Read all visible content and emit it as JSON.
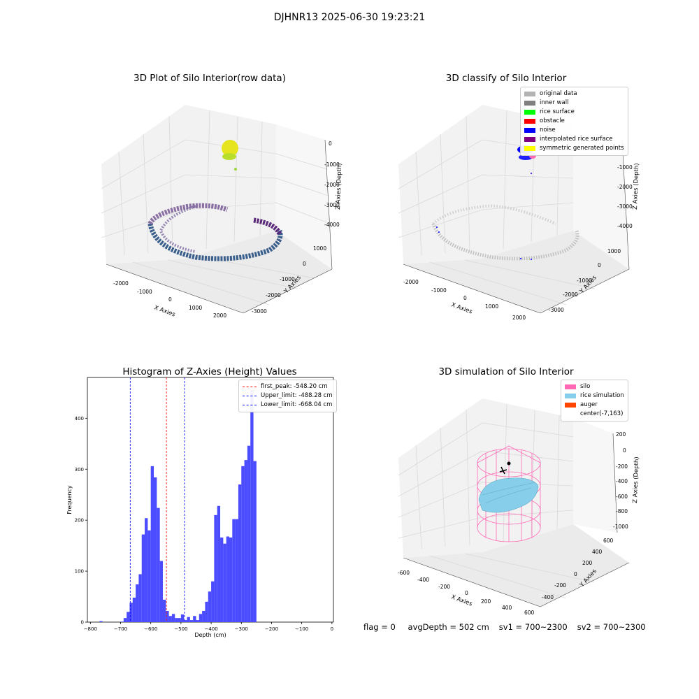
{
  "suptitle": "DJHNR13 2025-06-30 19:23:21",
  "colors": {
    "hist_bar": "#4b4bff",
    "first_peak_line": "#ff0000",
    "limit_lines": "#0000ff",
    "silo_wire": "#ff69b4",
    "rice": "#87ceeb",
    "viridis_purple": "#5b2a7a",
    "viridis_blue": "#3b5f8c",
    "viridis_yellow": "#e6e41c"
  },
  "plot3d_raw": {
    "title": "3D Plot of Silo Interior(row data)",
    "xlabel": "X Axies",
    "ylabel": "Y Axies",
    "zlabel": "Z Axies (Depth)",
    "x_ticks": [
      "-2000",
      "-1000",
      "0",
      "1000",
      "2000"
    ],
    "y_ticks": [
      "1000",
      "0",
      "-1000",
      "-2000",
      "-3000"
    ],
    "z_ticks": [
      "0",
      "-1000",
      "-2000",
      "-3000",
      "-4000"
    ]
  },
  "plot3d_classify": {
    "title": "3D classify of Silo Interior",
    "xlabel": "X Axies",
    "ylabel": "Y Axies",
    "zlabel": "Z Axies (Depth)",
    "x_ticks": [
      "-2000",
      "-1000",
      "0",
      "1000",
      "2000"
    ],
    "y_ticks": [
      "1000",
      "0",
      "-1000",
      "-2000",
      "-3000"
    ],
    "z_ticks": [
      "0",
      "-1000",
      "-2000",
      "-3000",
      "-4000"
    ],
    "legend": [
      {
        "label": "original data",
        "color": "#b3b3b3"
      },
      {
        "label": "inner wall",
        "color": "#808080"
      },
      {
        "label": "rice surface",
        "color": "#00ff00"
      },
      {
        "label": "obstacle",
        "color": "#ff0000"
      },
      {
        "label": "noise",
        "color": "#0000ff"
      },
      {
        "label": "interpolated rice surface",
        "color": "#800080"
      },
      {
        "label": "symmetric generated points",
        "color": "#ffff00"
      }
    ]
  },
  "plot3d_sim": {
    "title": "3D simulation of Silo Interior",
    "xlabel": "X Axies",
    "ylabel": "Y Axies",
    "zlabel": "Z Axies (Depth)",
    "x_ticks": [
      "-600",
      "-400",
      "-200",
      "0",
      "200",
      "400",
      "600"
    ],
    "y_ticks": [
      "600",
      "400",
      "200",
      "0",
      "-200",
      "-400"
    ],
    "z_ticks": [
      "200",
      "0",
      "-200",
      "-400",
      "-600",
      "-800",
      "-1000"
    ],
    "legend": [
      {
        "label": "silo",
        "color": "#ff69b4"
      },
      {
        "label": "rice simulation",
        "color": "#87ceeb"
      },
      {
        "label": "auger",
        "color": "#ff4500"
      },
      {
        "label": "center(-7,163)",
        "color": ""
      }
    ]
  },
  "chart_data": {
    "type": "bar",
    "title": "Histogram of Z-Axies (Height) Values",
    "xlabel": "Depth (cm)",
    "ylabel": "Frequency",
    "xlim": [
      -810,
      5
    ],
    "ylim": [
      0,
      480
    ],
    "x_ticks": [
      -800,
      -700,
      -600,
      -500,
      -400,
      -300,
      -200,
      -100,
      0
    ],
    "y_ticks": [
      0,
      100,
      200,
      300,
      400
    ],
    "bin_width": 10,
    "bins": [
      [
        -770,
        2
      ],
      [
        -700,
        1
      ],
      [
        -690,
        8
      ],
      [
        -680,
        20
      ],
      [
        -670,
        38
      ],
      [
        -660,
        48
      ],
      [
        -650,
        74
      ],
      [
        -640,
        94
      ],
      [
        -630,
        172
      ],
      [
        -620,
        204
      ],
      [
        -610,
        180
      ],
      [
        -600,
        306
      ],
      [
        -590,
        284
      ],
      [
        -580,
        224
      ],
      [
        -570,
        120
      ],
      [
        -560,
        44
      ],
      [
        -550,
        22
      ],
      [
        -540,
        12
      ],
      [
        -530,
        16
      ],
      [
        -520,
        8
      ],
      [
        -510,
        8
      ],
      [
        -500,
        15
      ],
      [
        -490,
        4
      ],
      [
        -480,
        10
      ],
      [
        -470,
        4
      ],
      [
        -460,
        12
      ],
      [
        -450,
        4
      ],
      [
        -440,
        16
      ],
      [
        -430,
        22
      ],
      [
        -420,
        40
      ],
      [
        -410,
        60
      ],
      [
        -400,
        80
      ],
      [
        -390,
        210
      ],
      [
        -380,
        228
      ],
      [
        -370,
        166
      ],
      [
        -360,
        154
      ],
      [
        -350,
        168
      ],
      [
        -340,
        166
      ],
      [
        -330,
        202
      ],
      [
        -320,
        202
      ],
      [
        -310,
        270
      ],
      [
        -300,
        306
      ],
      [
        -290,
        318
      ],
      [
        -280,
        346
      ],
      [
        -270,
        455
      ],
      [
        -260,
        316
      ]
    ],
    "vlines": [
      {
        "x": -548.2,
        "label": "first_peak: -548.20 cm",
        "color": "#ff0000"
      },
      {
        "x": -488.28,
        "label": "Upper_limit: -488.28 cm",
        "color": "#0000ff"
      },
      {
        "x": -668.04,
        "label": "Lower_limit: -668.04 cm",
        "color": "#0000ff"
      }
    ],
    "legend_position": "top-right",
    "grid": false
  },
  "footer": {
    "flag": "flag = 0",
    "avg_depth": "avgDepth = 502 cm",
    "sv1": "sv1 = 700~2300",
    "sv2": "sv2 = 700~2300"
  }
}
